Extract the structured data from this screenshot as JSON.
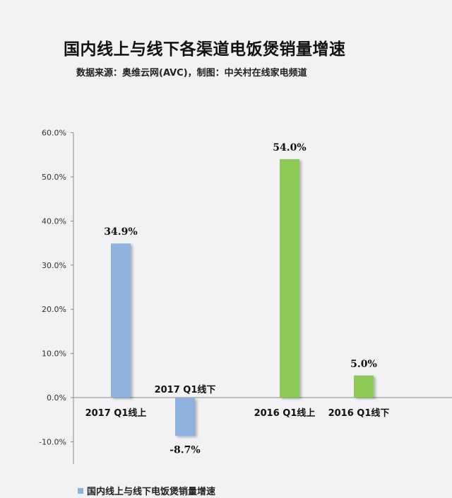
{
  "header": {
    "title": "国内线上与线下各渠道电饭煲销量增速",
    "subtitle": "数据来源：奥维云网(AVC)，制图：中关村在线家电频道"
  },
  "legend": {
    "label": "国内线上与线下电饭煲销量增速"
  },
  "colors": {
    "blue": "#8eb1dd",
    "green": "#8dc955",
    "axis": "#8a8a8a"
  },
  "chart_data": {
    "type": "bar",
    "categories": [
      "2017 Q1线上",
      "2017 Q1线下",
      "2016 Q1线上",
      "2016 Q1线下"
    ],
    "values": [
      34.9,
      -8.7,
      54.0,
      5.0
    ],
    "value_labels": [
      "34.9%",
      "-8.7%",
      "54.0%",
      "5.0%"
    ],
    "bar_colors": [
      "#8eb1dd",
      "#8eb1dd",
      "#8dc955",
      "#8dc955"
    ],
    "series": [
      {
        "name": "国内线上与线下电饭煲销量增速",
        "values": [
          34.9,
          -8.7,
          54.0,
          5.0
        ]
      }
    ],
    "yticks": [
      "-10.0%",
      "0.0%",
      "10.0%",
      "20.0%",
      "30.0%",
      "40.0%",
      "50.0%",
      "60.0%"
    ],
    "ytick_values": [
      -10,
      0,
      10,
      20,
      30,
      40,
      50,
      60
    ],
    "ylim": [
      -15,
      60
    ],
    "grid": false,
    "legend_position": "bottom-left",
    "title": "国内线上与线下各渠道电饭煲销量增速",
    "xlabel": "",
    "ylabel": ""
  }
}
